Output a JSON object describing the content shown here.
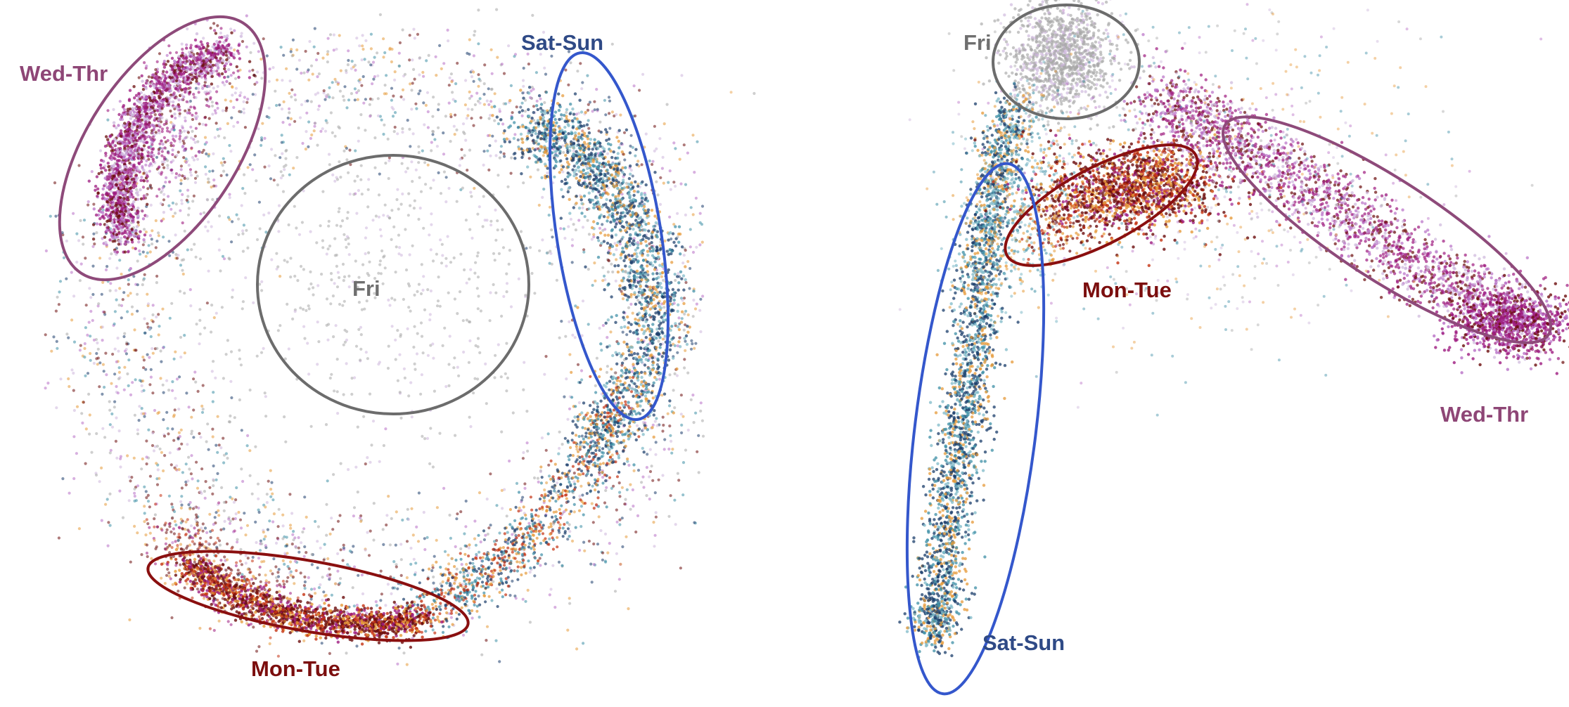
{
  "chart_data": [
    {
      "type": "scatter",
      "title": "",
      "xlabel": "",
      "ylabel": "",
      "grid": false,
      "legend": "none",
      "groups": [
        {
          "id": "wed-thr",
          "label": "Wed-Thr",
          "color": "#8e4676"
        },
        {
          "id": "sat-sun",
          "label": "Sat-Sun",
          "color": "#2f4a86"
        },
        {
          "id": "fri",
          "label": "Fri",
          "color": "#6f6f6f"
        },
        {
          "id": "mon-tue",
          "label": "Mon-Tue",
          "color": "#7b0e0e"
        }
      ],
      "ellipse_colors": {
        "wed-thr": "#8e4a7a",
        "sat-sun": "#3457cc",
        "fri": "#6c6c6c",
        "mon-tue": "#8a0f0f"
      },
      "point_palette": [
        "#9e1b7f",
        "#b86fc6",
        "#6b0c0c",
        "#c43212",
        "#e69a3a",
        "#1b3d6b",
        "#3e8fa6",
        "#7fbac8",
        "#a8a8a8",
        "#cdb6dc"
      ]
    },
    {
      "type": "scatter",
      "title": "",
      "xlabel": "",
      "ylabel": "",
      "grid": false,
      "legend": "none",
      "groups": [
        {
          "id": "fri",
          "label": "Fri",
          "color": "#6f6f6f"
        },
        {
          "id": "mon-tue",
          "label": "Mon-Tue",
          "color": "#7b0e0e"
        },
        {
          "id": "wed-thr",
          "label": "Wed-Thr",
          "color": "#8e4676"
        },
        {
          "id": "sat-sun",
          "label": "Sat-Sun",
          "color": "#2f4a86"
        }
      ],
      "ellipse_colors": {
        "wed-thr": "#8e4a7a",
        "sat-sun": "#3457cc",
        "fri": "#6c6c6c",
        "mon-tue": "#8a0f0f"
      },
      "point_palette": [
        "#9e1b7f",
        "#b86fc6",
        "#6b0c0c",
        "#c43212",
        "#e69a3a",
        "#1b3d6b",
        "#3e8fa6",
        "#7fbac8",
        "#a8a8a8",
        "#cdb6dc"
      ]
    }
  ]
}
